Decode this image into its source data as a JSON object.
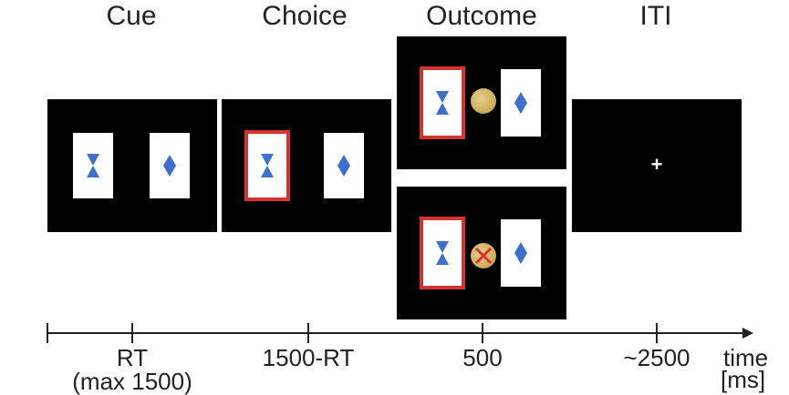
{
  "phases": {
    "cue": "Cue",
    "choice": "Choice",
    "outcome": "Outcome",
    "iti": "ITI"
  },
  "timeline": {
    "labels": {
      "cue_main": "RT",
      "cue_sub": "(max 1500)",
      "choice": "1500-RT",
      "outcome": "500",
      "iti": "~2500"
    },
    "unit_line1": "time",
    "unit_line2": "[ms]"
  },
  "stimuli": {
    "left": "hourglass-icon",
    "right": "diamond-icon",
    "reward": "coin-icon",
    "no_reward": "crossed-coin-icon",
    "fixation": "+"
  },
  "colors": {
    "screen": "#000000",
    "card": "#ffffff",
    "selection": "#d6332c",
    "symbol": "#3b6fd1",
    "coin": "#c9a955"
  }
}
